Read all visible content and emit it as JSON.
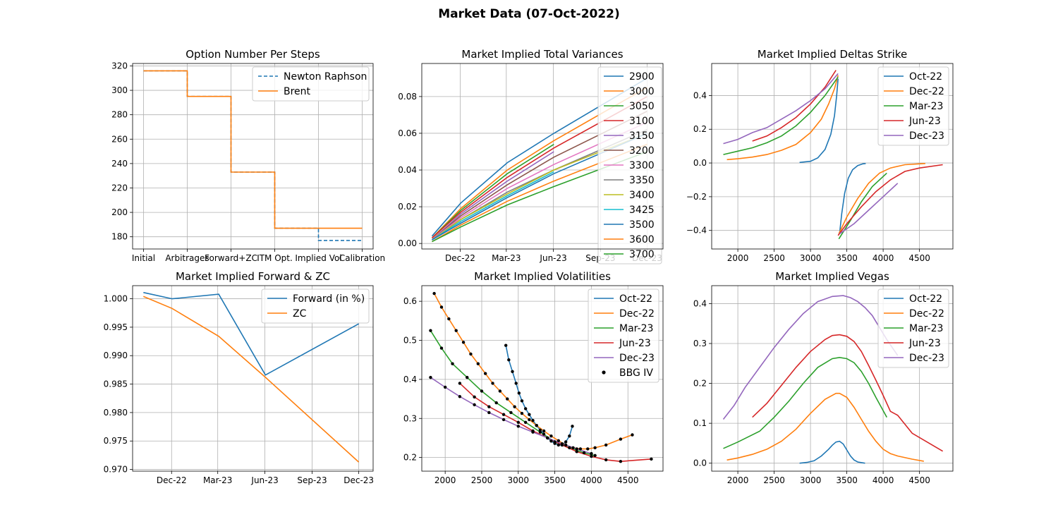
{
  "figure": {
    "suptitle": "Market Data (07-Oct-2022)"
  },
  "colors": [
    "#1f77b4",
    "#ff7f0e",
    "#2ca02c",
    "#d62728",
    "#9467bd",
    "#8c564b",
    "#e377c2",
    "#7f7f7f",
    "#bcbd22",
    "#17becf"
  ],
  "chart_data": [
    {
      "type": "line",
      "title": "Option Number Per Steps",
      "categories": [
        "Initial",
        "Arbitrages",
        "Forward+ZC",
        "ITM Opt.",
        "Implied Vol",
        "Calibration"
      ],
      "ylim": [
        170,
        322
      ],
      "yticks": [
        180,
        200,
        220,
        240,
        260,
        280,
        300,
        320
      ],
      "grid": true,
      "legend": "upper right",
      "series": [
        {
          "name": "Newton Raphson",
          "style": "dashed",
          "step_values": [
            316,
            295,
            233,
            187,
            177,
            177
          ]
        },
        {
          "name": "Brent",
          "style": "solid",
          "step_values": [
            316,
            295,
            233,
            187,
            187,
            187
          ]
        }
      ]
    },
    {
      "type": "line",
      "title": "Market Implied Total Variances",
      "x_axis": "date",
      "xlim": [
        "2022-10-01",
        "2024-01-15"
      ],
      "xticks": [
        "2022-12-15",
        "2023-03-15",
        "2023-06-15",
        "2023-09-15",
        "2023-12-15"
      ],
      "xticklabels": [
        "Dec-22",
        "Mar-23",
        "Jun-23",
        "Sep-23",
        "Dec-23"
      ],
      "ylim": [
        -0.003,
        0.098
      ],
      "yticks": [
        0.0,
        0.02,
        0.04,
        0.06,
        0.08
      ],
      "yticklabels": [
        "0.00",
        "0.02",
        "0.04",
        "0.06",
        "0.08"
      ],
      "grid": true,
      "legend": "upper right",
      "dates": [
        "2022-10-21",
        "2022-12-16",
        "2023-03-17",
        "2023-06-16",
        "2023-12-15"
      ],
      "series": [
        {
          "name": "2900",
          "values": [
            0.004,
            0.022,
            0.044,
            0.06,
            0.09
          ]
        },
        {
          "name": "3000",
          "values": [
            0.003,
            0.019,
            0.04,
            0.056,
            0.085
          ]
        },
        {
          "name": "3050",
          "values": [
            0.003,
            0.018,
            0.038,
            0.054,
            null
          ]
        },
        {
          "name": "3100",
          "values": [
            0.003,
            0.017,
            0.036,
            0.052,
            0.08
          ]
        },
        {
          "name": "3150",
          "values": [
            0.002,
            0.016,
            0.034,
            0.05,
            null
          ]
        },
        {
          "name": "3200",
          "values": [
            0.002,
            0.015,
            0.032,
            0.047,
            0.072
          ]
        },
        {
          "name": "3300",
          "values": [
            0.002,
            0.014,
            0.03,
            0.043,
            0.066
          ]
        },
        {
          "name": "3350",
          "values": [
            0.002,
            0.013,
            0.028,
            0.04,
            0.062
          ]
        },
        {
          "name": "3400",
          "values": [
            0.002,
            0.013,
            0.027,
            0.04,
            0.06
          ]
        },
        {
          "name": "3425",
          "values": [
            0.002,
            0.012,
            0.026,
            0.039,
            null
          ]
        },
        {
          "name": "3500",
          "values": [
            0.002,
            0.011,
            0.025,
            0.038,
            0.06
          ]
        },
        {
          "name": "3600",
          "values": [
            0.001,
            0.01,
            0.023,
            0.034,
            0.054
          ]
        },
        {
          "name": "3700",
          "values": [
            0.001,
            0.009,
            0.021,
            0.031,
            0.05
          ]
        }
      ]
    },
    {
      "type": "line",
      "title": "Market Implied Deltas Strike",
      "xlim": [
        1640,
        4960
      ],
      "xticks": [
        2000,
        2500,
        3000,
        3500,
        4000,
        4500
      ],
      "ylim": [
        -0.51,
        0.59
      ],
      "yticks": [
        -0.4,
        -0.2,
        0.0,
        0.2,
        0.4
      ],
      "yticklabels": [
        "−0.4",
        "−0.2",
        "0.0",
        "0.2",
        "0.4"
      ],
      "grid": true,
      "legend": "upper right",
      "series": [
        {
          "name": "Oct-22",
          "call": {
            "x": [
              2850,
              3000,
              3100,
              3200,
              3280,
              3330,
              3360,
              3380
            ],
            "y": [
              0.003,
              0.01,
              0.03,
              0.08,
              0.17,
              0.28,
              0.4,
              0.5
            ]
          },
          "put": {
            "x": [
              3400,
              3430,
              3470,
              3520,
              3580,
              3650,
              3720,
              3760
            ],
            "y": [
              -0.42,
              -0.3,
              -0.18,
              -0.09,
              -0.04,
              -0.015,
              -0.005,
              -0.003
            ]
          }
        },
        {
          "name": "Dec-22",
          "call": {
            "x": [
              1850,
              2000,
              2200,
              2400,
              2600,
              2800,
              3000,
              3150,
              3250,
              3330,
              3380
            ],
            "y": [
              0.02,
              0.025,
              0.035,
              0.05,
              0.075,
              0.11,
              0.18,
              0.26,
              0.35,
              0.44,
              0.52
            ]
          },
          "put": {
            "x": [
              3390,
              3500,
              3650,
              3800,
              3950,
              4100,
              4300,
              4580
            ],
            "y": [
              -0.42,
              -0.32,
              -0.21,
              -0.12,
              -0.06,
              -0.03,
              -0.01,
              -0.003
            ]
          }
        },
        {
          "name": "Mar-23",
          "call": {
            "x": [
              1800,
              2000,
              2200,
              2400,
              2600,
              2800,
              3000,
              3200,
              3380
            ],
            "y": [
              0.05,
              0.07,
              0.09,
              0.12,
              0.16,
              0.22,
              0.3,
              0.4,
              0.51
            ]
          },
          "put": {
            "x": [
              3390,
              3550,
              3700,
              3850,
              4050
            ],
            "y": [
              -0.45,
              -0.34,
              -0.23,
              -0.14,
              -0.06
            ]
          }
        },
        {
          "name": "Jun-23",
          "call": {
            "x": [
              2200,
              2400,
              2600,
              2800,
              3000,
              3200,
              3350
            ],
            "y": [
              0.13,
              0.16,
              0.21,
              0.27,
              0.35,
              0.45,
              0.55
            ]
          },
          "put": {
            "x": [
              3380,
              3500,
              3700,
              3900,
              4100,
              4300,
              4500,
              4820
            ],
            "y": [
              -0.43,
              -0.36,
              -0.26,
              -0.17,
              -0.1,
              -0.05,
              -0.03,
              -0.01
            ]
          }
        },
        {
          "name": "Dec-23",
          "call": {
            "x": [
              1800,
              2000,
              2200,
              2400,
              2600,
              2800,
              3000,
              3200,
              3380
            ],
            "y": [
              0.115,
              0.14,
              0.18,
              0.21,
              0.26,
              0.31,
              0.37,
              0.44,
              0.53
            ]
          },
          "put": {
            "x": [
              3400,
              3600,
              3800,
              4000,
              4200
            ],
            "y": [
              -0.42,
              -0.36,
              -0.28,
              -0.2,
              -0.12
            ]
          }
        }
      ]
    },
    {
      "type": "line",
      "title": "Market Implied Forward & ZC",
      "x_axis": "date",
      "xlim": [
        "2022-09-30",
        "2024-01-12"
      ],
      "xticks": [
        "2022-12-15",
        "2023-03-15",
        "2023-06-15",
        "2023-09-15",
        "2023-12-15"
      ],
      "xticklabels": [
        "Dec-22",
        "Mar-23",
        "Jun-23",
        "Sep-23",
        "Dec-23"
      ],
      "ylim": [
        0.9697,
        1.0023
      ],
      "yticks": [
        0.97,
        0.975,
        0.98,
        0.985,
        0.99,
        0.995,
        1.0
      ],
      "yticklabels": [
        "0.970",
        "0.975",
        "0.980",
        "0.985",
        "0.990",
        "0.995",
        "1.000"
      ],
      "grid": true,
      "legend": "upper right",
      "dates": [
        "2022-10-21",
        "2022-12-16",
        "2023-03-17",
        "2023-06-16",
        "2023-12-15"
      ],
      "series": [
        {
          "name": "Forward (in %)",
          "values": [
            1.0011,
            1.0,
            1.0008,
            0.9866,
            0.9956
          ]
        },
        {
          "name": "ZC",
          "values": [
            1.0004,
            0.9983,
            0.9934,
            0.9862,
            0.9713
          ]
        }
      ]
    },
    {
      "type": "line",
      "title": "Market Implied Volatilities",
      "xlim": [
        1680,
        4980
      ],
      "xticks": [
        2000,
        2500,
        3000,
        3500,
        4000,
        4500
      ],
      "ylim": [
        0.165,
        0.64
      ],
      "yticks": [
        0.2,
        0.3,
        0.4,
        0.5,
        0.6
      ],
      "yticklabels": [
        "0.2",
        "0.3",
        "0.4",
        "0.5",
        "0.6"
      ],
      "grid": true,
      "legend": "upper right",
      "series": [
        {
          "name": "Oct-22",
          "x": [
            2830,
            2870,
            2920,
            2970,
            3010,
            3050,
            3100,
            3150,
            3200,
            3250,
            3300,
            3350,
            3400,
            3450,
            3500,
            3550,
            3600,
            3650,
            3700,
            3740
          ],
          "y": [
            0.487,
            0.45,
            0.42,
            0.39,
            0.365,
            0.345,
            0.325,
            0.31,
            0.295,
            0.282,
            0.27,
            0.26,
            0.25,
            0.242,
            0.236,
            0.232,
            0.232,
            0.24,
            0.255,
            0.28
          ]
        },
        {
          "name": "Dec-22",
          "x": [
            1850,
            1950,
            2050,
            2150,
            2250,
            2350,
            2450,
            2550,
            2650,
            2750,
            2850,
            2950,
            3050,
            3150,
            3250,
            3350,
            3450,
            3550,
            3650,
            3750,
            3850,
            3950,
            4050,
            4200,
            4400,
            4560
          ],
          "y": [
            0.62,
            0.585,
            0.555,
            0.525,
            0.495,
            0.465,
            0.44,
            0.415,
            0.39,
            0.37,
            0.35,
            0.33,
            0.313,
            0.297,
            0.282,
            0.268,
            0.255,
            0.243,
            0.232,
            0.225,
            0.222,
            0.222,
            0.225,
            0.232,
            0.247,
            0.258
          ]
        },
        {
          "name": "Mar-23",
          "x": [
            1800,
            1950,
            2100,
            2300,
            2500,
            2700,
            2900,
            3100,
            3300,
            3500,
            3700,
            3900,
            4050
          ],
          "y": [
            0.525,
            0.48,
            0.44,
            0.405,
            0.37,
            0.34,
            0.315,
            0.29,
            0.265,
            0.24,
            0.225,
            0.212,
            0.205
          ]
        },
        {
          "name": "Jun-23",
          "x": [
            2200,
            2400,
            2600,
            2800,
            3000,
            3200,
            3400,
            3600,
            3800,
            4000,
            4200,
            4400,
            4820
          ],
          "y": [
            0.39,
            0.355,
            0.33,
            0.31,
            0.29,
            0.268,
            0.25,
            0.232,
            0.215,
            0.203,
            0.194,
            0.19,
            0.196
          ]
        },
        {
          "name": "Dec-23",
          "x": [
            1800,
            2000,
            2200,
            2400,
            2600,
            2800,
            3000,
            3200,
            3400,
            3600,
            3800,
            4000
          ],
          "y": [
            0.405,
            0.38,
            0.356,
            0.335,
            0.315,
            0.297,
            0.28,
            0.265,
            0.25,
            0.235,
            0.222,
            0.21
          ]
        }
      ],
      "markers": {
        "name": "BBG IV",
        "color": "#000000"
      }
    },
    {
      "type": "line",
      "title": "Market Implied Vegas",
      "xlim": [
        1640,
        4960
      ],
      "xticks": [
        2000,
        2500,
        3000,
        3500,
        4000,
        4500
      ],
      "ylim": [
        -0.02,
        0.445
      ],
      "yticks": [
        0.0,
        0.1,
        0.2,
        0.3,
        0.4
      ],
      "yticklabels": [
        "0.0",
        "0.1",
        "0.2",
        "0.3",
        "0.4"
      ],
      "grid": true,
      "legend": "upper right",
      "series": [
        {
          "name": "Oct-22",
          "x": [
            2850,
            2950,
            3050,
            3150,
            3250,
            3300,
            3350,
            3400,
            3450,
            3500,
            3550,
            3600,
            3650,
            3750
          ],
          "y": [
            0.0,
            0.002,
            0.006,
            0.018,
            0.035,
            0.045,
            0.053,
            0.055,
            0.048,
            0.033,
            0.018,
            0.008,
            0.003,
            0.0
          ]
        },
        {
          "name": "Dec-22",
          "x": [
            1850,
            2000,
            2200,
            2400,
            2600,
            2800,
            3000,
            3200,
            3350,
            3400,
            3500,
            3600,
            3700,
            3800,
            3900,
            4000,
            4100,
            4200,
            4400,
            4560
          ],
          "y": [
            0.008,
            0.013,
            0.022,
            0.035,
            0.055,
            0.085,
            0.125,
            0.16,
            0.175,
            0.175,
            0.165,
            0.14,
            0.11,
            0.08,
            0.055,
            0.035,
            0.024,
            0.018,
            0.01,
            0.005
          ]
        },
        {
          "name": "Mar-23",
          "x": [
            1800,
            2000,
            2300,
            2500,
            2700,
            2900,
            3100,
            3300,
            3400,
            3500,
            3600,
            3700,
            3800,
            3900,
            4050
          ],
          "y": [
            0.037,
            0.053,
            0.08,
            0.115,
            0.155,
            0.2,
            0.24,
            0.262,
            0.265,
            0.262,
            0.252,
            0.23,
            0.2,
            0.165,
            0.115
          ]
        },
        {
          "name": "Jun-23",
          "x": [
            2200,
            2400,
            2600,
            2800,
            3000,
            3200,
            3300,
            3400,
            3500,
            3600,
            3700,
            3800,
            3900,
            4000,
            4100,
            4200,
            4400,
            4820
          ],
          "y": [
            0.115,
            0.15,
            0.195,
            0.24,
            0.28,
            0.31,
            0.32,
            0.322,
            0.318,
            0.305,
            0.28,
            0.245,
            0.208,
            0.17,
            0.13,
            0.12,
            0.075,
            0.03
          ]
        },
        {
          "name": "Dec-23",
          "x": [
            1800,
            1950,
            2100,
            2300,
            2500,
            2700,
            2900,
            3100,
            3300,
            3450,
            3550,
            3650,
            3750,
            3850,
            3950,
            4050,
            4200
          ],
          "y": [
            0.11,
            0.145,
            0.19,
            0.24,
            0.29,
            0.335,
            0.375,
            0.405,
            0.418,
            0.42,
            0.415,
            0.405,
            0.39,
            0.37,
            0.34,
            0.31,
            0.27
          ]
        }
      ]
    }
  ]
}
